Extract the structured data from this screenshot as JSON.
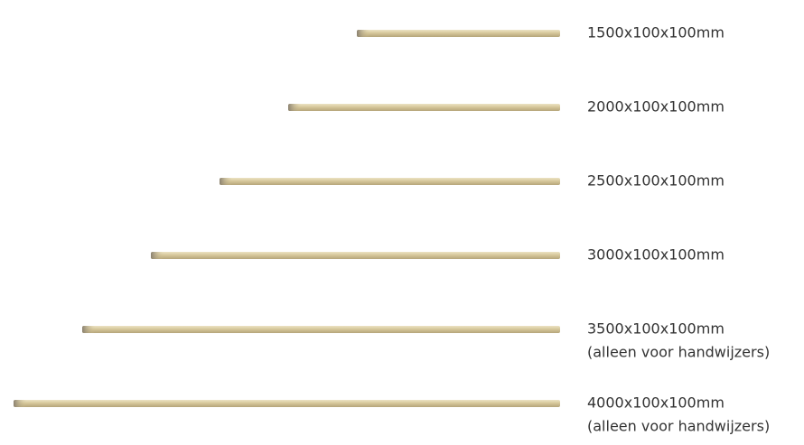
{
  "items": [
    {
      "label": "1500x100x100mm"
    },
    {
      "label": "2000x100x100mm"
    },
    {
      "label": "2500x100x100mm"
    },
    {
      "label": "3000x100x100mm"
    },
    {
      "label": "3500x100x100mm",
      "note": "(alleen voor handwijzers)"
    },
    {
      "label": "4000x100x100mm",
      "note": "(alleen voor handwijzers)"
    }
  ]
}
